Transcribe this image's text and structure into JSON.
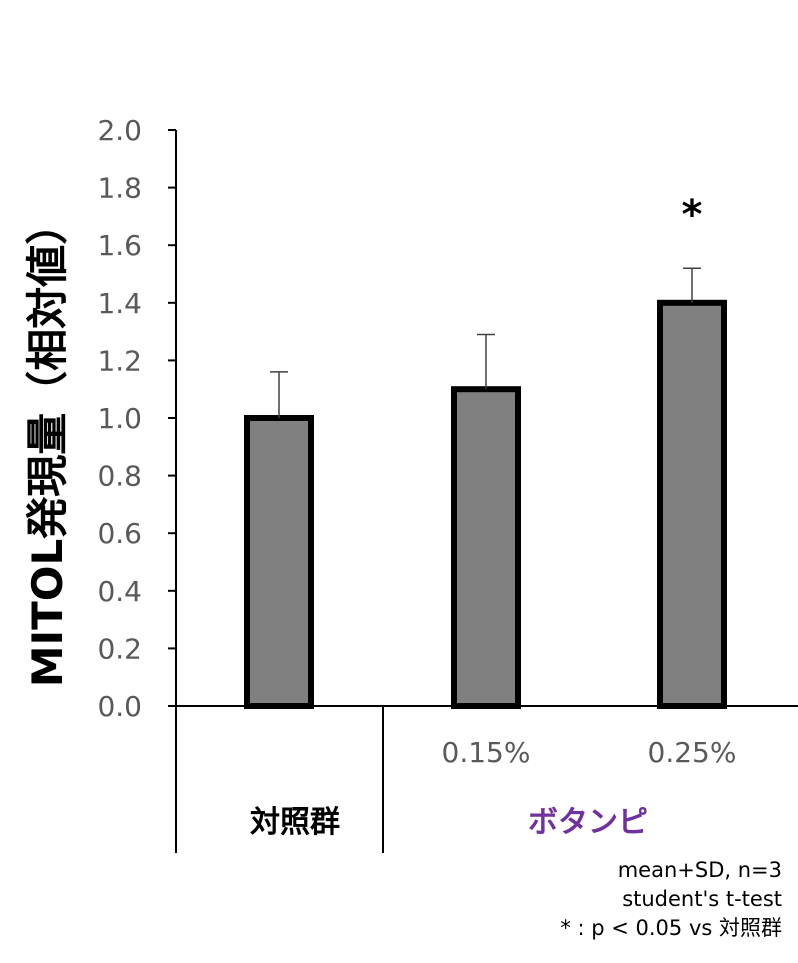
{
  "chart_data": {
    "type": "bar",
    "ylabel": "MITOL発現量（相対値）",
    "ylim": [
      0,
      2.0
    ],
    "yticks": [
      "0.0",
      "0.2",
      "0.4",
      "0.6",
      "0.8",
      "1.0",
      "1.2",
      "1.4",
      "1.6",
      "1.8",
      "2.0"
    ],
    "categories": [
      "",
      "0.15%",
      "0.25%"
    ],
    "values": [
      1.0,
      1.1,
      1.4
    ],
    "errors": [
      0.16,
      0.19,
      0.12
    ],
    "significance": [
      "",
      "",
      "*"
    ],
    "groups": [
      {
        "label": "対照群",
        "color": "#000000"
      },
      {
        "label": "ボタンピ",
        "color": "#7030a0"
      }
    ],
    "bar_color": "#808080",
    "grid": false
  },
  "notes": [
    "mean+SD, n=3",
    "student's  t-test",
    "* : p < 0.05 vs 対照群"
  ]
}
